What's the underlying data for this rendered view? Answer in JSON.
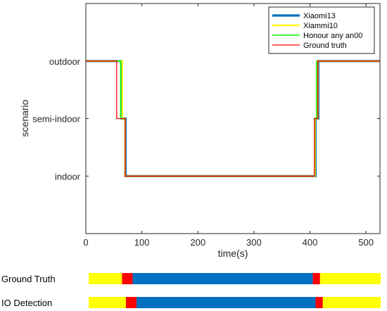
{
  "chart_data": [
    {
      "type": "line",
      "xlabel": "time(s)",
      "ylabel": "scenario",
      "xlim": [
        0,
        525
      ],
      "xticks": [
        0,
        100,
        200,
        300,
        400,
        500
      ],
      "ylim": [
        0,
        4
      ],
      "yticks": [
        {
          "value": 1,
          "label": "indoor"
        },
        {
          "value": 2,
          "label": "semi-indoor"
        },
        {
          "value": 3,
          "label": "outdoor"
        }
      ],
      "legend_position": "top-right",
      "series": [
        {
          "name": "Xiaomi13",
          "color": "#0072BD",
          "stroke": 3.2,
          "x": [
            0,
            64,
            64,
            71,
            71,
            410,
            410,
            415,
            415,
            525
          ],
          "y": [
            3,
            3,
            2,
            2,
            1,
            1,
            2,
            2,
            3,
            3
          ]
        },
        {
          "name": "Xiammi10",
          "color": "#FFFF00",
          "stroke": 2.2,
          "x": [
            0,
            65,
            65,
            70,
            70,
            409,
            409,
            414,
            414,
            525
          ],
          "y": [
            3,
            3,
            2,
            2,
            1,
            1,
            2,
            2,
            3,
            3
          ]
        },
        {
          "name": "Honour any an00",
          "color": "#00FF00",
          "stroke": 1.5,
          "x": [
            0,
            62,
            62,
            70,
            70,
            408,
            408,
            412,
            412,
            525
          ],
          "y": [
            3,
            3,
            2,
            2,
            1,
            1,
            2,
            2,
            3,
            3
          ]
        },
        {
          "name": "Ground truth",
          "color": "#FF0000",
          "stroke": 1.3,
          "x": [
            0,
            55,
            55,
            70,
            70,
            408,
            408,
            414,
            414,
            525
          ],
          "y": [
            3,
            3,
            2,
            2,
            1,
            1,
            2,
            2,
            3,
            3
          ]
        }
      ]
    },
    {
      "type": "table",
      "rows": [
        {
          "label": "Ground Truth",
          "segments": [
            {
              "from": 0,
              "to": 60,
              "state": "outdoor"
            },
            {
              "from": 60,
              "to": 79,
              "state": "semi-indoor"
            },
            {
              "from": 79,
              "to": 403,
              "state": "indoor"
            },
            {
              "from": 403,
              "to": 416,
              "state": "semi-indoor"
            },
            {
              "from": 416,
              "to": 525,
              "state": "outdoor"
            }
          ]
        },
        {
          "label": "IO Detection",
          "segments": [
            {
              "from": 0,
              "to": 67,
              "state": "outdoor"
            },
            {
              "from": 67,
              "to": 86,
              "state": "semi-indoor"
            },
            {
              "from": 86,
              "to": 408,
              "state": "indoor"
            },
            {
              "from": 408,
              "to": 421,
              "state": "semi-indoor"
            },
            {
              "from": 421,
              "to": 525,
              "state": "outdoor"
            }
          ]
        }
      ],
      "state_colors": {
        "outdoor": "#FFFF00",
        "semi-indoor": "#FF0000",
        "indoor": "#0070C0"
      }
    }
  ]
}
